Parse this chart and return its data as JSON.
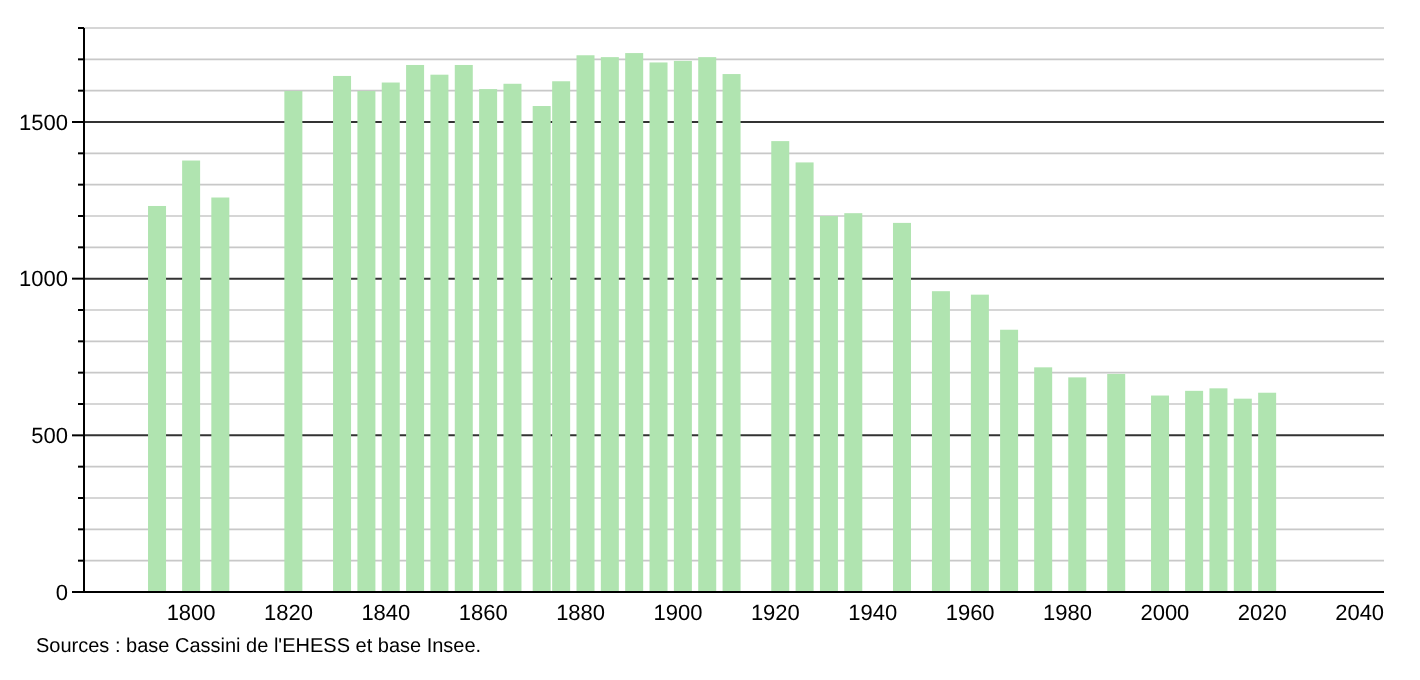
{
  "chart_data": {
    "type": "bar",
    "x": [
      1793,
      1800,
      1806,
      1821,
      1831,
      1836,
      1841,
      1846,
      1851,
      1856,
      1861,
      1866,
      1872,
      1876,
      1881,
      1886,
      1891,
      1896,
      1901,
      1906,
      1911,
      1921,
      1926,
      1931,
      1936,
      1946,
      1954,
      1962,
      1968,
      1975,
      1982,
      1990,
      1999,
      2006,
      2011,
      2016,
      2021
    ],
    "values": [
      1232,
      1377,
      1259,
      1599,
      1647,
      1599,
      1626,
      1682,
      1651,
      1682,
      1605,
      1622,
      1551,
      1630,
      1713,
      1707,
      1720,
      1690,
      1695,
      1707,
      1653,
      1439,
      1371,
      1200,
      1209,
      1178,
      960,
      949,
      837,
      717,
      685,
      696,
      627,
      642,
      650,
      617,
      636
    ],
    "color": "#b0e4b0",
    "xlim": [
      1778,
      2045
    ],
    "xticks": [
      1800,
      1820,
      1840,
      1860,
      1880,
      1900,
      1920,
      1940,
      1960,
      1980,
      2000,
      2020,
      2040
    ],
    "ylim": [
      0,
      1800
    ],
    "yticks": [
      0,
      {
        "value": 100,
        "label": null
      },
      {
        "value": 200,
        "label": null
      },
      {
        "value": 300,
        "label": null
      },
      {
        "value": 400,
        "label": null
      },
      500,
      {
        "value": 600,
        "label": null
      },
      {
        "value": 700,
        "label": null
      },
      {
        "value": 800,
        "label": null
      },
      {
        "value": 900,
        "label": null
      },
      1000,
      {
        "value": 1100,
        "label": null
      },
      {
        "value": 1200,
        "label": null
      },
      {
        "value": 1300,
        "label": null
      },
      {
        "value": 1400,
        "label": null
      },
      1500,
      {
        "value": 1600,
        "label": null
      },
      {
        "value": 1700,
        "label": null
      },
      {
        "value": 1800,
        "label": null
      }
    ],
    "grid": "y",
    "annotations": [
      "Sources : base Cassini de l'EHESS et base Insee."
    ]
  }
}
